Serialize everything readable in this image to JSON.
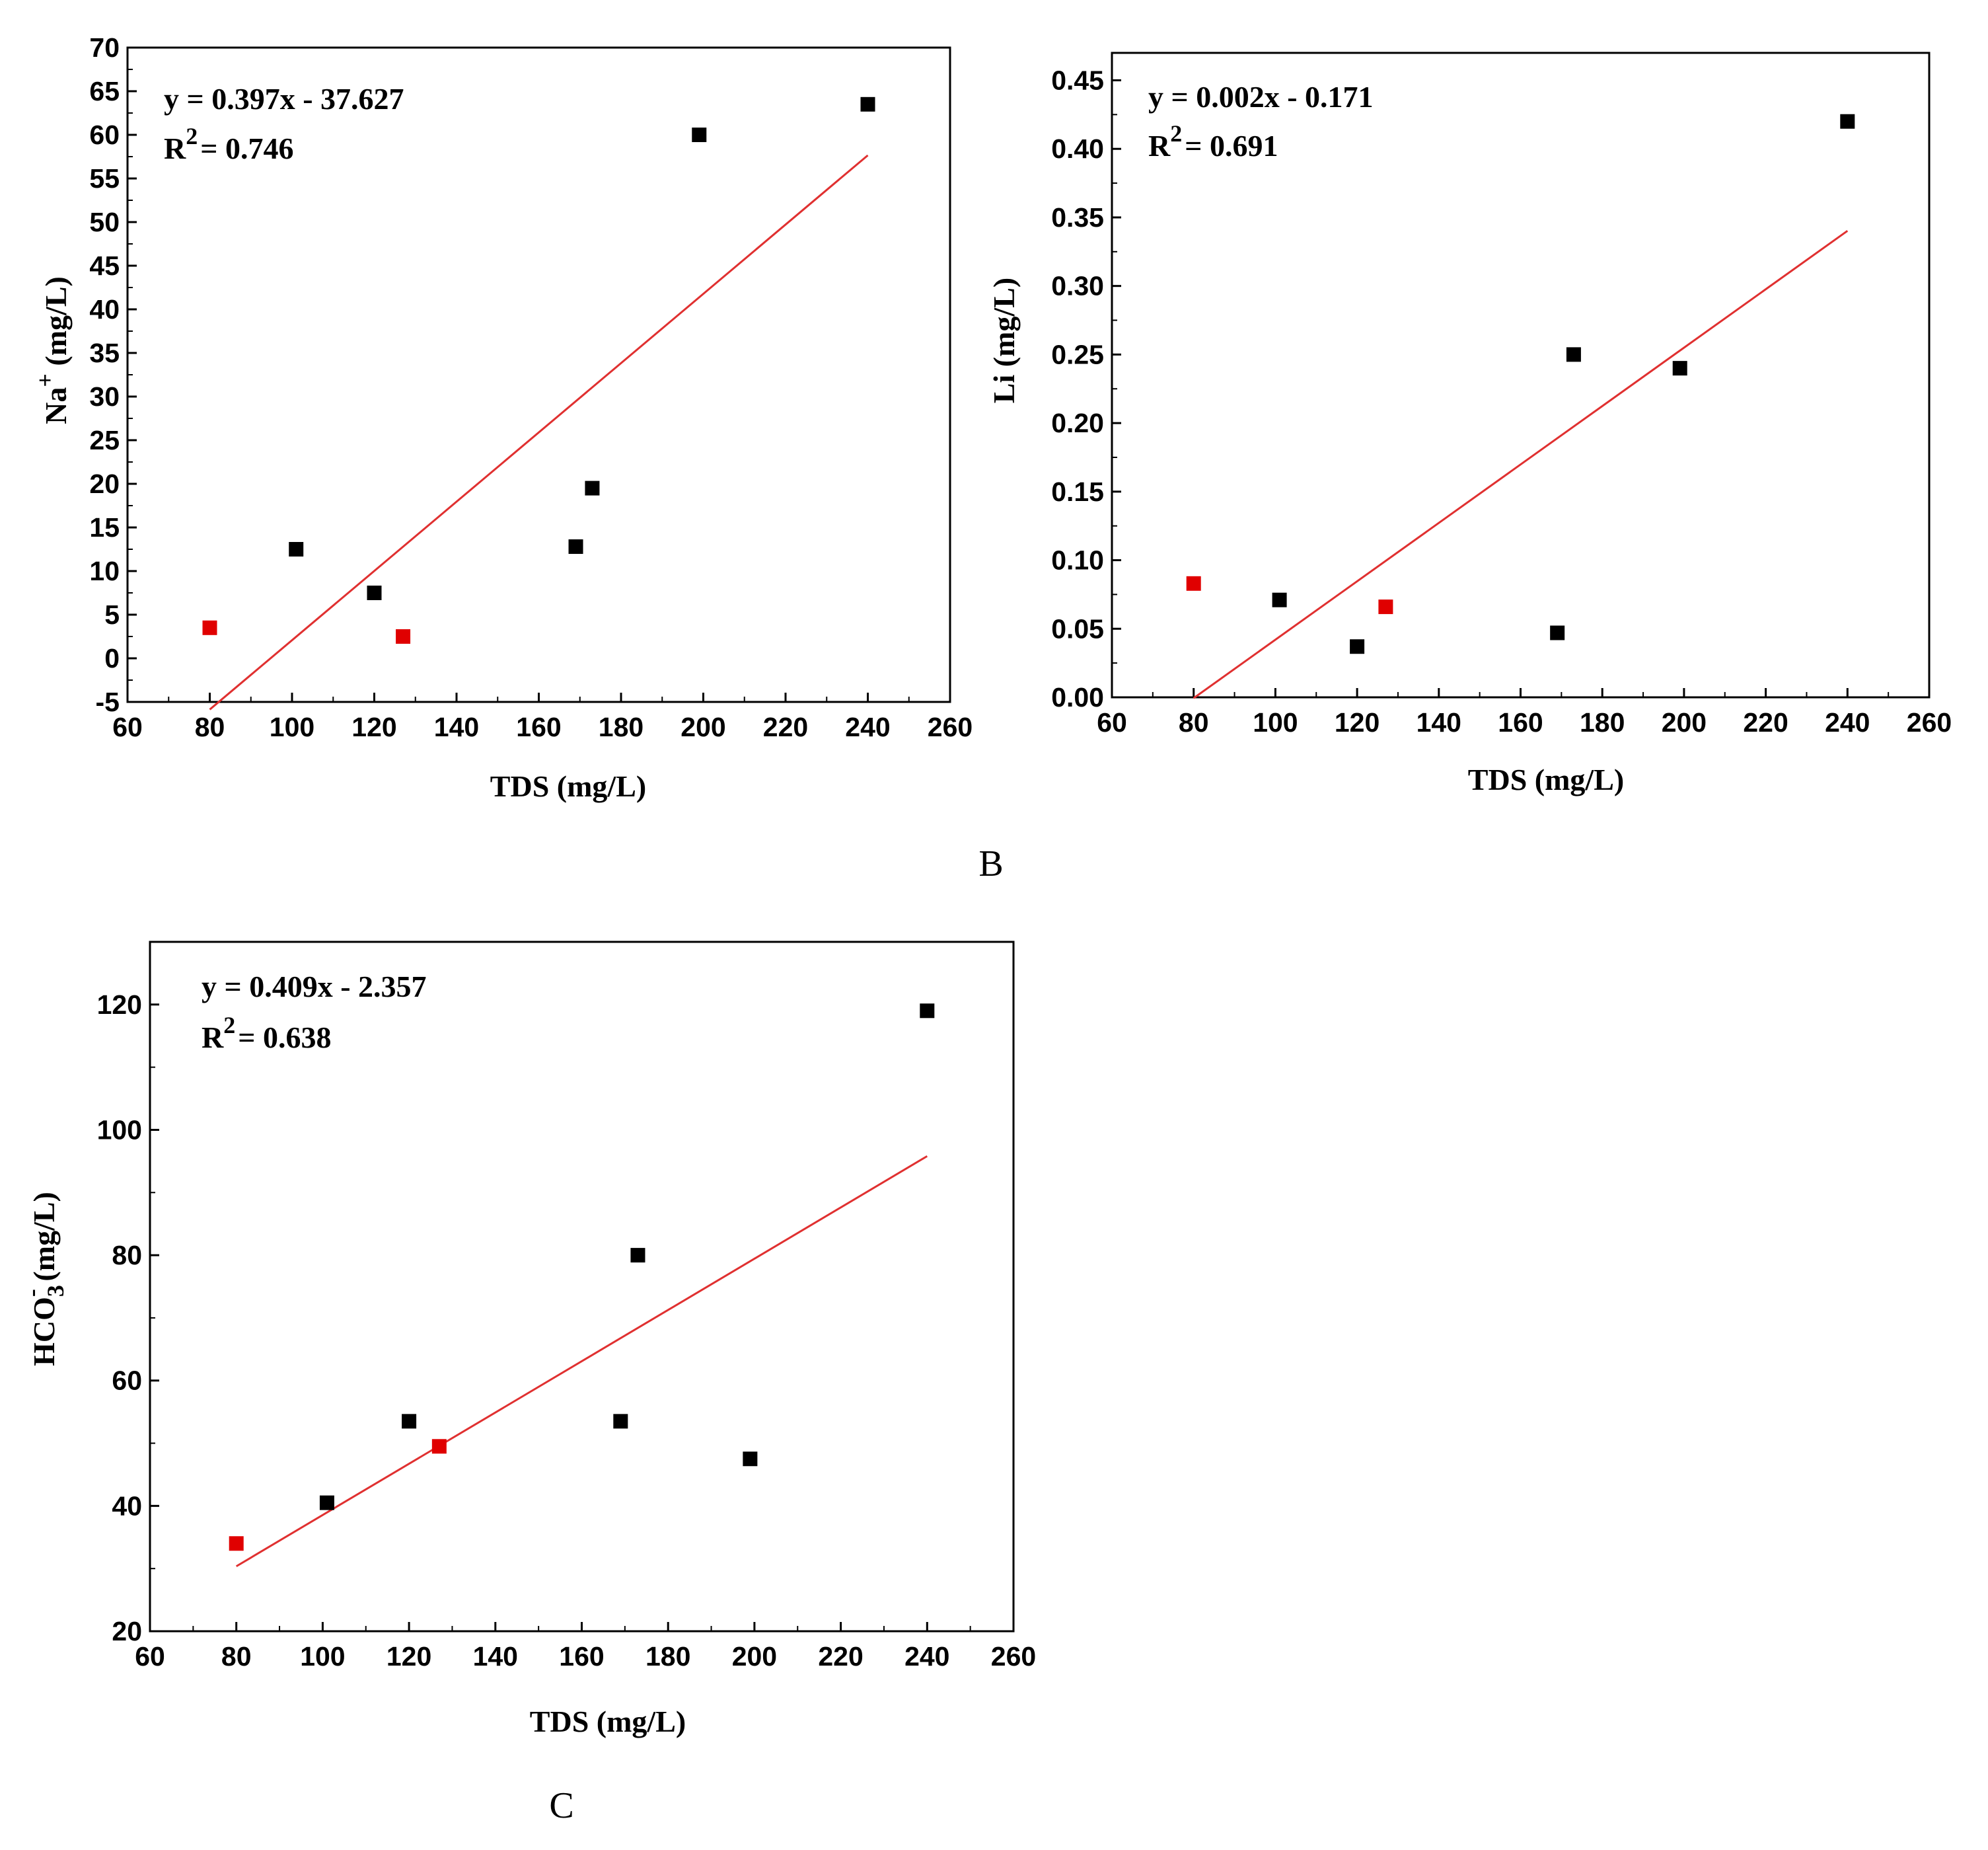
{
  "chart_data": [
    {
      "type": "scatter",
      "panel_label": "",
      "title": "",
      "xlabel": "TDS (mg/L)",
      "ylabel": "Na+ (mg/L)",
      "ylabel_main": "Na",
      "ylabel_sup": "+",
      "ylabel_rest": " (mg/L)",
      "xlim": [
        60,
        260
      ],
      "ylim": [
        -5,
        70
      ],
      "xticks": [
        60,
        80,
        100,
        120,
        140,
        160,
        180,
        200,
        220,
        240,
        260
      ],
      "yticks": [
        -5,
        0,
        5,
        10,
        15,
        20,
        25,
        30,
        35,
        40,
        45,
        50,
        55,
        60,
        65,
        70
      ],
      "tick_decimals": 0,
      "equation": "y = 0.397x - 37.627",
      "r2_label": "R",
      "r2_sup": "2",
      "r2_value": "= 0.746",
      "fit": {
        "slope": 0.397,
        "intercept": -37.627,
        "x_range": [
          80,
          240
        ]
      },
      "series": [
        {
          "name": "black",
          "color": "#000000",
          "points": [
            [
              101,
              12.5
            ],
            [
              120,
              7.5
            ],
            [
              169,
              12.8
            ],
            [
              173,
              19.5
            ],
            [
              199,
              60
            ],
            [
              240,
              63.5
            ]
          ]
        },
        {
          "name": "red",
          "color": "#e00000",
          "points": [
            [
              80,
              3.5
            ],
            [
              127,
              2.5
            ]
          ]
        }
      ],
      "fit_color": "#e03030"
    },
    {
      "type": "scatter",
      "panel_label": "B",
      "title": "",
      "xlabel": "TDS (mg/L)",
      "ylabel": "Li (mg/L)",
      "ylabel_main": "Li",
      "ylabel_sup": "",
      "ylabel_rest": " (mg/L)",
      "xlim": [
        60,
        260
      ],
      "ylim": [
        0,
        0.47
      ],
      "xticks": [
        60,
        80,
        100,
        120,
        140,
        160,
        180,
        200,
        220,
        240,
        260
      ],
      "yticks": [
        0,
        0.05,
        0.1,
        0.15,
        0.2,
        0.25,
        0.3,
        0.35,
        0.4,
        0.45
      ],
      "tick_decimals": 2,
      "equation": "y = 0.002x - 0.171",
      "r2_label": "R",
      "r2_sup": "2",
      "r2_value": "= 0.691",
      "fit": {
        "slope": 0.00213,
        "intercept": -0.171,
        "x_range": [
          80,
          240
        ]
      },
      "series": [
        {
          "name": "black",
          "color": "#000000",
          "points": [
            [
              101,
              0.071
            ],
            [
              120,
              0.037
            ],
            [
              169,
              0.047
            ],
            [
              173,
              0.25
            ],
            [
              199,
              0.24
            ],
            [
              240,
              0.42
            ]
          ]
        },
        {
          "name": "red",
          "color": "#e00000",
          "points": [
            [
              80,
              0.083
            ],
            [
              127,
              0.066
            ]
          ]
        }
      ],
      "fit_color": "#e03030"
    },
    {
      "type": "scatter",
      "panel_label": "C",
      "title": "",
      "xlabel": "TDS (mg/L)",
      "ylabel": "HCO3- (mg/L)",
      "ylabel_main": "HCO",
      "ylabel_sub": "3",
      "ylabel_sup": "-",
      "ylabel_rest": " (mg/L)",
      "xlim": [
        60,
        260
      ],
      "ylim": [
        20,
        130
      ],
      "xticks": [
        60,
        80,
        100,
        120,
        140,
        160,
        180,
        200,
        220,
        240,
        260
      ],
      "yticks": [
        20,
        40,
        60,
        80,
        100,
        120
      ],
      "tick_decimals": 0,
      "equation": "y = 0.409x - 2.357",
      "r2_label": "R",
      "r2_sup": "2",
      "r2_value": "= 0.638",
      "fit": {
        "slope": 0.409,
        "intercept": -2.357,
        "x_range": [
          80,
          240
        ]
      },
      "series": [
        {
          "name": "black",
          "color": "#000000",
          "points": [
            [
              101,
              40.5
            ],
            [
              120,
              53.5
            ],
            [
              169,
              53.5
            ],
            [
              173,
              80
            ],
            [
              199,
              47.5
            ],
            [
              240,
              119
            ]
          ]
        },
        {
          "name": "red",
          "color": "#e00000",
          "points": [
            [
              80,
              34
            ],
            [
              127,
              49.5
            ]
          ]
        }
      ],
      "fit_color": "#e03030"
    }
  ]
}
